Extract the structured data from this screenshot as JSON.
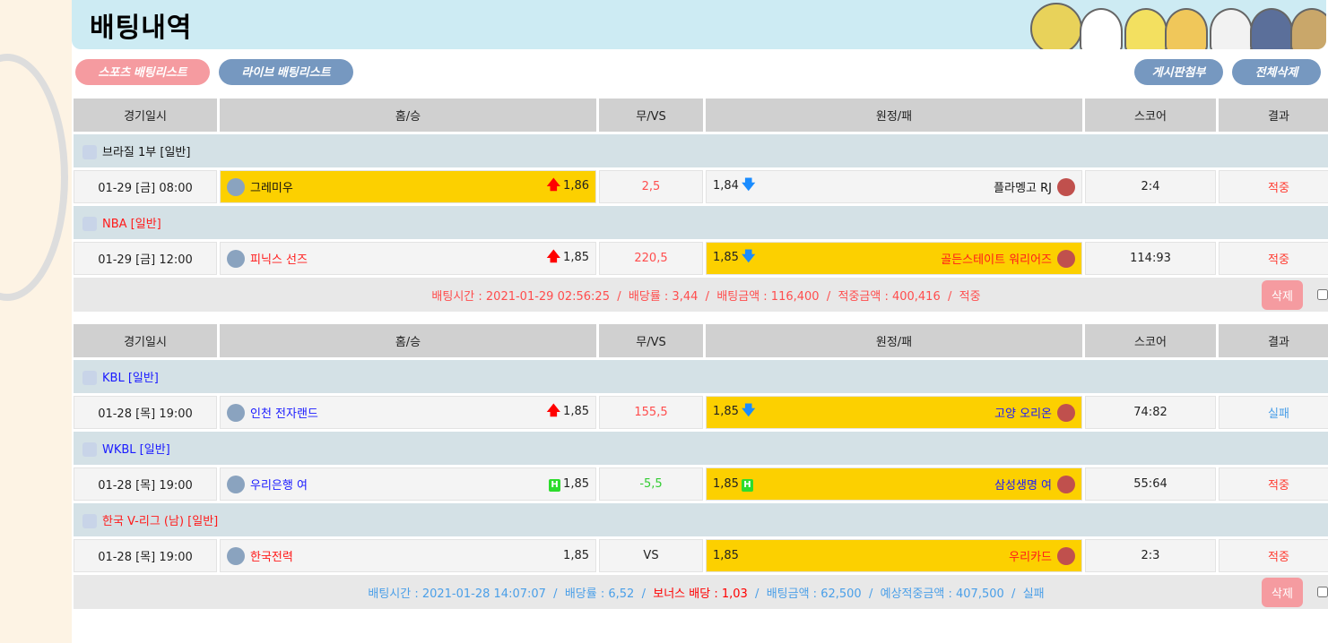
{
  "page": {
    "title": "배팅내역"
  },
  "buttons": {
    "sports": "스포츠 배팅리스트",
    "live": "라이브 배팅리스트",
    "board_attach": "게시판첨부",
    "delete_all": "전체삭제"
  },
  "columns": [
    "경기일시",
    "홈/승",
    "무/VS",
    "원정/패",
    "스코어",
    "결과"
  ],
  "colors": {
    "highlight": "#fcd000",
    "win": "#ff3b30",
    "lose": "#4a9fe8",
    "up": "#ff0000",
    "down": "#1a8cff",
    "handicap": "#2ddc2d"
  },
  "bets": [
    {
      "groups": [
        {
          "league": {
            "name": "브라질 1부 [일반]",
            "color": "#111111",
            "icon": "brasileirao-trophy-icon"
          },
          "match": {
            "datetime": "01-29 [금] 08:00",
            "home": {
              "name": "그레미우",
              "color": "#111111",
              "odds": "1,86",
              "indicator": "up",
              "selected": true,
              "icon": "gremio-logo"
            },
            "mid": {
              "value": "2,5",
              "color": "#ff4d4d"
            },
            "away": {
              "name": "플라멩고 RJ",
              "color": "#111111",
              "odds": "1,84",
              "indicator": "down",
              "selected": false,
              "icon": "flamengo-logo"
            },
            "score": "2:4",
            "result": {
              "text": "적중",
              "color": "#ff3b30"
            }
          }
        },
        {
          "league": {
            "name": "NBA [일반]",
            "color": "#ff1a1a",
            "icon": "nba-logo-icon"
          },
          "match": {
            "datetime": "01-29 [금] 12:00",
            "home": {
              "name": "피닉스 선즈",
              "color": "#ff1a1a",
              "odds": "1,85",
              "indicator": "up",
              "selected": false,
              "icon": "suns-logo"
            },
            "mid": {
              "value": "220,5",
              "color": "#ff4d4d"
            },
            "away": {
              "name": "골든스테이트 워리어즈",
              "color": "#ff1a1a",
              "odds": "1,85",
              "indicator": "down",
              "selected": true,
              "icon": "warriors-logo"
            },
            "score": "114:93",
            "result": {
              "text": "적중",
              "color": "#ff3b30"
            }
          }
        }
      ],
      "summary": {
        "parts": [
          {
            "text": "배팅시간 : 2021-01-29 02:56:25",
            "color": "#ff4d4d"
          },
          {
            "text": "배당률 : 3,44",
            "color": "#ff4d4d"
          },
          {
            "text": "배팅금액 : 116,400",
            "color": "#ff4d4d"
          },
          {
            "text": "적중금액 : 400,416",
            "color": "#ff4d4d"
          },
          {
            "text": "적중",
            "color": "#ff4d4d"
          }
        ],
        "delete_label": "삭제"
      }
    },
    {
      "groups": [
        {
          "league": {
            "name": "KBL [일반]",
            "color": "#1a1aff",
            "icon": "kbl-logo-icon"
          },
          "match": {
            "datetime": "01-28 [목] 19:00",
            "home": {
              "name": "인천 전자랜드",
              "color": "#1a1aff",
              "odds": "1,85",
              "indicator": "up",
              "selected": false,
              "icon": "elephants-logo"
            },
            "mid": {
              "value": "155,5",
              "color": "#ff4d4d"
            },
            "away": {
              "name": "고양 오리온",
              "color": "#1a1aff",
              "odds": "1,85",
              "indicator": "down",
              "selected": true,
              "icon": "orion-logo"
            },
            "score": "74:82",
            "result": {
              "text": "실패",
              "color": "#4a9fe8"
            }
          }
        },
        {
          "league": {
            "name": "WKBL [일반]",
            "color": "#1a1aff",
            "icon": "wkbl-logo-icon"
          },
          "match": {
            "datetime": "01-28 [목] 19:00",
            "home": {
              "name": "우리은행 여",
              "color": "#1a1aff",
              "odds": "1,85",
              "indicator": "handicap",
              "selected": false,
              "icon": "woori-wibee-logo"
            },
            "mid": {
              "value": "-5,5",
              "color": "#33cc33"
            },
            "away": {
              "name": "삼성생명 여",
              "color": "#1a1aff",
              "odds": "1,85",
              "indicator": "handicap",
              "selected": true,
              "icon": "samsung-blueminx-logo"
            },
            "score": "55:64",
            "result": {
              "text": "적중",
              "color": "#ff3b30"
            }
          }
        },
        {
          "league": {
            "name": "한국 V-리그 (남) [일반]",
            "color": "#ff1a1a",
            "icon": "vleague-logo-icon"
          },
          "match": {
            "datetime": "01-28 [목] 19:00",
            "home": {
              "name": "한국전력",
              "color": "#ff1a1a",
              "odds": "1,85",
              "indicator": "none",
              "selected": false,
              "icon": "kepco-logo"
            },
            "mid": {
              "value": "VS",
              "color": "#222222"
            },
            "away": {
              "name": "우리카드",
              "color": "#ff1a1a",
              "odds": "1,85",
              "indicator": "none",
              "selected": true,
              "icon": "wooricard-logo"
            },
            "score": "2:3",
            "result": {
              "text": "적중",
              "color": "#ff3b30"
            }
          }
        }
      ],
      "summary": {
        "parts": [
          {
            "text": "배팅시간 : 2021-01-28 14:07:07",
            "color": "#4a9fe8"
          },
          {
            "text": "배당률 : 6,52",
            "color": "#4a9fe8"
          },
          {
            "text": "보너스 배당 : 1,03",
            "color": "#ff0000"
          },
          {
            "text": "배팅금액 : 62,500",
            "color": "#4a9fe8"
          },
          {
            "text": "예상적중금액 : 407,500",
            "color": "#4a9fe8"
          },
          {
            "text": "실패",
            "color": "#4a9fe8"
          }
        ],
        "delete_label": "삭제"
      }
    }
  ]
}
